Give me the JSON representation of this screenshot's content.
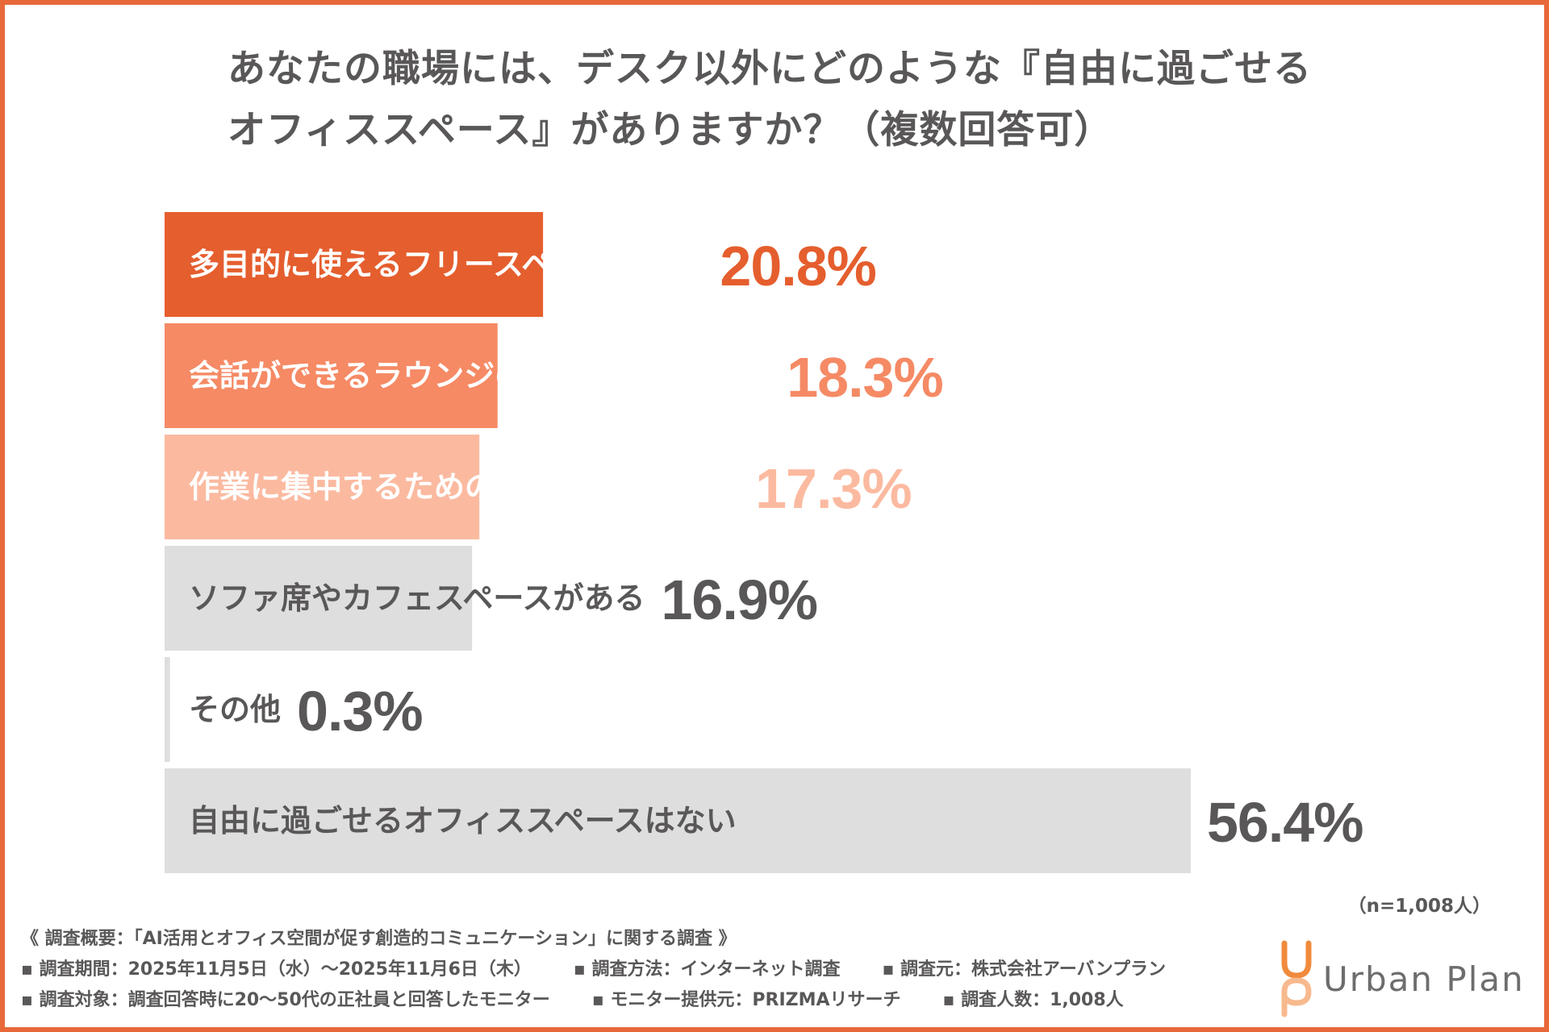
{
  "title": {
    "line1": "あなたの職場には、デスク以外にどのような『自由に過ごせる",
    "line2": "オフィススペース』がありますか？（複数回答可）"
  },
  "colors": {
    "border": "#e8683a",
    "text_gray": "#595757",
    "bar_gray": "#dedede"
  },
  "chart_data": {
    "type": "bar",
    "orientation": "horizontal",
    "title": "あなたの職場には、デスク以外にどのような『自由に過ごせるオフィススペース』がありますか？（複数回答可）",
    "unit": "%",
    "categories": [
      "多目的に使えるフリースペースがある",
      "会話ができるラウンジのような場所がある",
      "作業に集中するための個別ブースがある",
      "ソファ席やカフェスペースがある",
      "その他",
      "自由に過ごせるオフィススペースはない"
    ],
    "values": [
      20.8,
      18.3,
      17.3,
      16.9,
      0.3,
      56.4
    ],
    "value_labels": [
      "20.8%",
      "18.3%",
      "17.3%",
      "16.9%",
      "0.3%",
      "56.4%"
    ],
    "bar_colors": [
      "#e55e2e",
      "#f58a65",
      "#fbbaa0",
      "#dedede",
      "#dedede",
      "#dedede"
    ],
    "value_colors": [
      "#e55e2e",
      "#f58a65",
      "#fbbaa0",
      "#595757",
      "#595757",
      "#595757"
    ],
    "label_colors": [
      "#ffffff",
      "#ffffff",
      "#ffffff",
      "#595757",
      "#595757",
      "#595757"
    ],
    "xlim": [
      0,
      56.4
    ]
  },
  "sample_size": "（n=1,008人）",
  "footer": {
    "heading": "《 調査概要：「AI活用とオフィス空間が促す創造的コミュニケーション」に関する調査 》",
    "period": "▪ 調査期間：2025年11月5日（水）〜2025年11月6日（木）",
    "method": "▪ 調査方法：インターネット調査",
    "organizer": "▪ 調査元：株式会社アーバンプラン",
    "target": "▪ 調査対象：調査回答時に20〜50代の正社員と回答したモニター",
    "provider": "▪ モニター提供元：PRIZMAリサーチ",
    "respondents": "▪ 調査人数：1,008人"
  },
  "logo": {
    "name": "Urban Plan",
    "colors": [
      "#f08a3c",
      "#f7b98d"
    ]
  }
}
